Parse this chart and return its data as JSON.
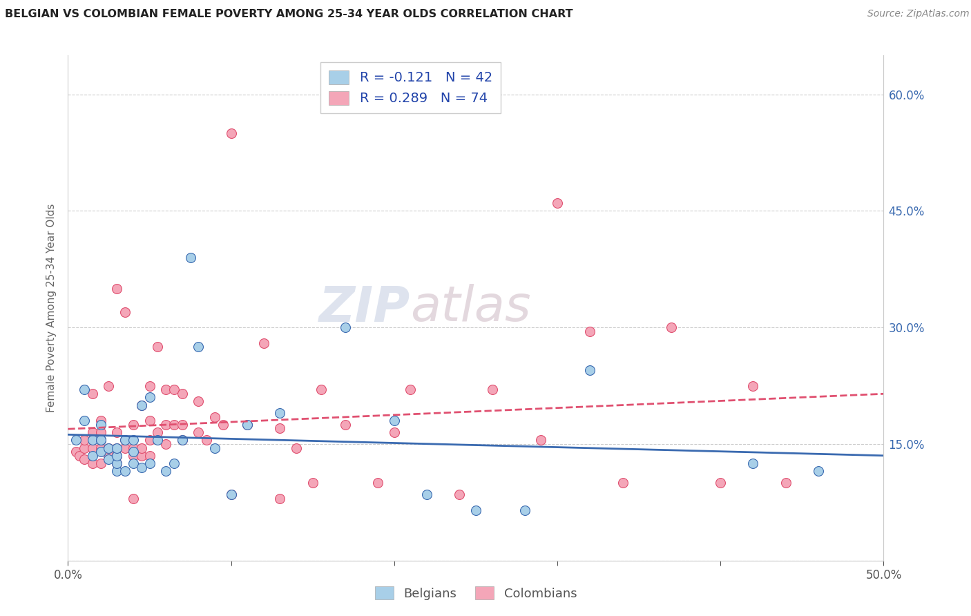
{
  "title": "BELGIAN VS COLOMBIAN FEMALE POVERTY AMONG 25-34 YEAR OLDS CORRELATION CHART",
  "source": "Source: ZipAtlas.com",
  "ylabel": "Female Poverty Among 25-34 Year Olds",
  "xlim": [
    0,
    0.5
  ],
  "ylim": [
    0,
    0.65
  ],
  "legend_r_belgian": "R = -0.121",
  "legend_n_belgian": "N = 42",
  "legend_r_colombian": "R = 0.289",
  "legend_n_colombian": "N = 74",
  "belgian_color": "#a8cfe8",
  "colombian_color": "#f4a6b8",
  "belgian_line_color": "#3a6ab0",
  "colombian_line_color": "#e05070",
  "watermark_zip": "ZIP",
  "watermark_atlas": "atlas",
  "belgian_x": [
    0.005,
    0.01,
    0.01,
    0.015,
    0.015,
    0.02,
    0.02,
    0.02,
    0.02,
    0.025,
    0.025,
    0.03,
    0.03,
    0.03,
    0.03,
    0.035,
    0.035,
    0.04,
    0.04,
    0.04,
    0.045,
    0.045,
    0.05,
    0.05,
    0.055,
    0.06,
    0.065,
    0.07,
    0.075,
    0.08,
    0.09,
    0.1,
    0.11,
    0.13,
    0.17,
    0.2,
    0.22,
    0.25,
    0.28,
    0.32,
    0.42,
    0.46
  ],
  "belgian_y": [
    0.155,
    0.18,
    0.22,
    0.135,
    0.155,
    0.14,
    0.155,
    0.155,
    0.175,
    0.13,
    0.145,
    0.115,
    0.125,
    0.135,
    0.145,
    0.115,
    0.155,
    0.125,
    0.14,
    0.155,
    0.12,
    0.2,
    0.125,
    0.21,
    0.155,
    0.115,
    0.125,
    0.155,
    0.39,
    0.275,
    0.145,
    0.085,
    0.175,
    0.19,
    0.3,
    0.18,
    0.085,
    0.065,
    0.065,
    0.245,
    0.125,
    0.115
  ],
  "colombian_x": [
    0.005,
    0.007,
    0.01,
    0.01,
    0.01,
    0.015,
    0.015,
    0.015,
    0.015,
    0.02,
    0.02,
    0.02,
    0.02,
    0.02,
    0.025,
    0.025,
    0.025,
    0.03,
    0.03,
    0.03,
    0.03,
    0.03,
    0.035,
    0.035,
    0.035,
    0.04,
    0.04,
    0.04,
    0.04,
    0.045,
    0.045,
    0.045,
    0.05,
    0.05,
    0.05,
    0.05,
    0.055,
    0.055,
    0.06,
    0.06,
    0.06,
    0.065,
    0.065,
    0.07,
    0.07,
    0.07,
    0.08,
    0.08,
    0.085,
    0.09,
    0.095,
    0.1,
    0.1,
    0.11,
    0.12,
    0.13,
    0.13,
    0.14,
    0.15,
    0.155,
    0.17,
    0.19,
    0.2,
    0.21,
    0.24,
    0.26,
    0.29,
    0.3,
    0.32,
    0.34,
    0.37,
    0.4,
    0.42,
    0.44
  ],
  "colombian_y": [
    0.14,
    0.135,
    0.13,
    0.145,
    0.155,
    0.125,
    0.145,
    0.165,
    0.215,
    0.125,
    0.145,
    0.155,
    0.165,
    0.18,
    0.135,
    0.145,
    0.225,
    0.125,
    0.135,
    0.145,
    0.165,
    0.35,
    0.145,
    0.155,
    0.32,
    0.08,
    0.135,
    0.145,
    0.175,
    0.135,
    0.145,
    0.2,
    0.135,
    0.155,
    0.18,
    0.225,
    0.165,
    0.275,
    0.15,
    0.175,
    0.22,
    0.175,
    0.22,
    0.155,
    0.175,
    0.215,
    0.165,
    0.205,
    0.155,
    0.185,
    0.175,
    0.085,
    0.55,
    0.175,
    0.28,
    0.08,
    0.17,
    0.145,
    0.1,
    0.22,
    0.175,
    0.1,
    0.165,
    0.22,
    0.085,
    0.22,
    0.155,
    0.46,
    0.295,
    0.1,
    0.3,
    0.1,
    0.225,
    0.1
  ]
}
